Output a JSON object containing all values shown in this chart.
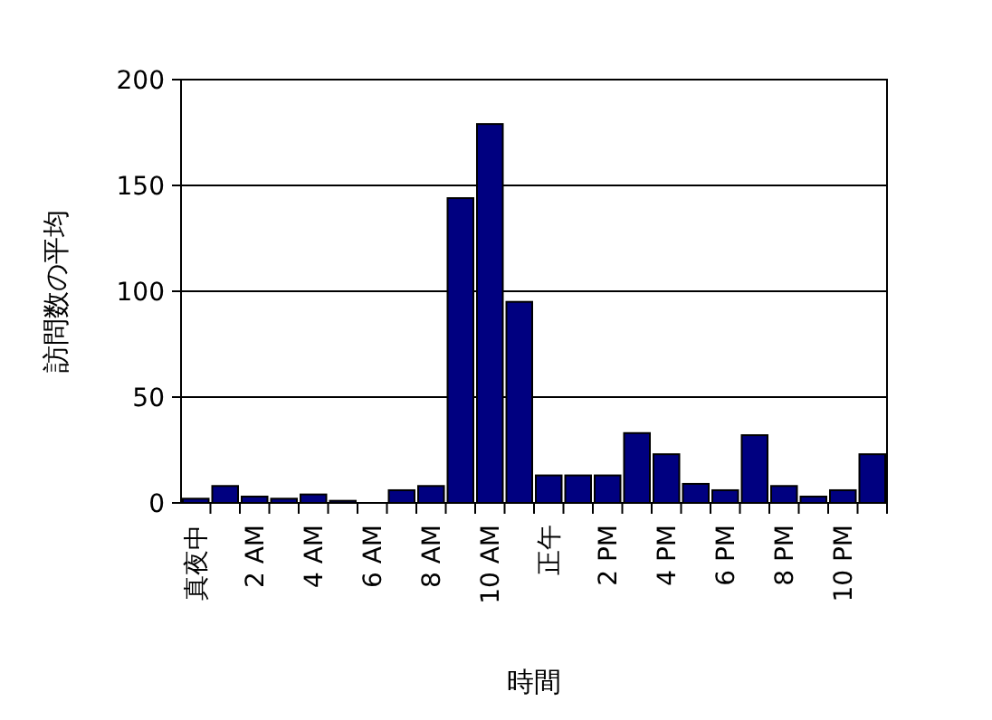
{
  "chart_data": {
    "type": "bar",
    "xlabel": "時間",
    "ylabel": "訪問数の平均",
    "categories": [
      "真夜中",
      null,
      "2 AM",
      null,
      "4 AM",
      null,
      "6 AM",
      null,
      "8 AM",
      null,
      "10 AM",
      null,
      "正午",
      null,
      "2 PM",
      null,
      "4 PM",
      null,
      "6 PM",
      null,
      "8 PM",
      null,
      "10 PM",
      null
    ],
    "values": [
      2,
      8,
      3,
      2,
      4,
      1,
      0,
      6,
      8,
      144,
      179,
      95,
      13,
      13,
      13,
      33,
      23,
      9,
      6,
      32,
      8,
      3,
      6,
      23
    ],
    "color": "#000080",
    "ylim": [
      0,
      200
    ],
    "yticks": [
      0,
      50,
      100,
      150,
      200
    ],
    "grid": "y"
  }
}
